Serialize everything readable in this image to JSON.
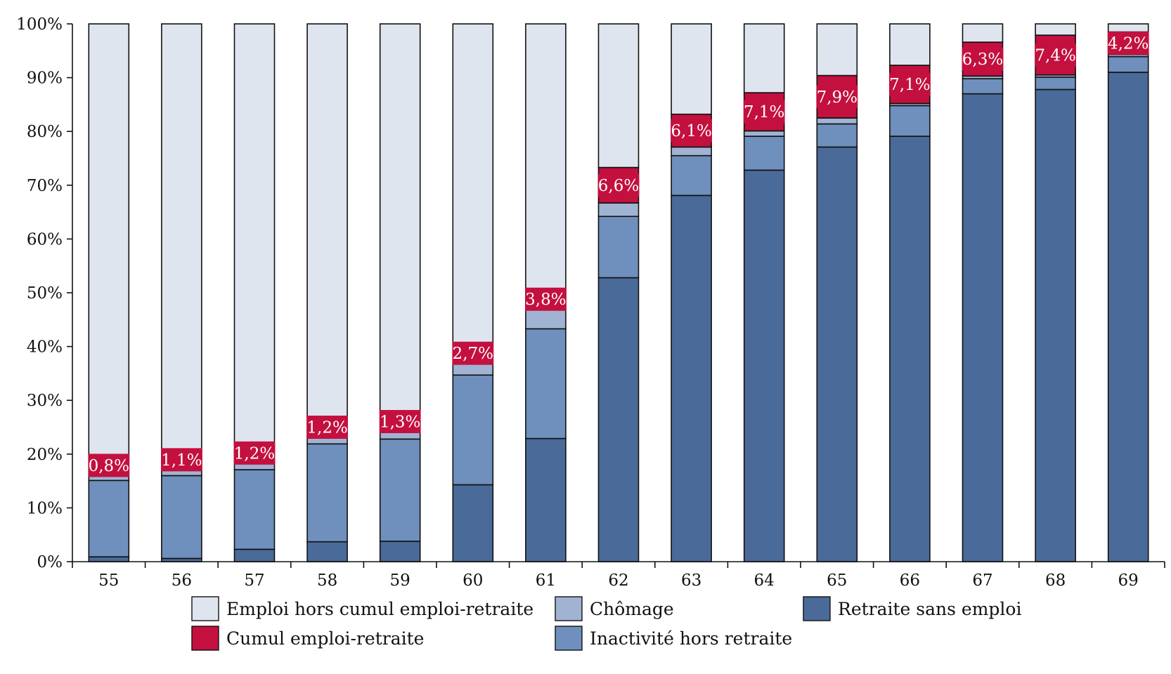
{
  "chart_data": {
    "type": "bar",
    "stacked": true,
    "categories": [
      "55",
      "56",
      "57",
      "58",
      "59",
      "60",
      "61",
      "62",
      "63",
      "64",
      "65",
      "66",
      "67",
      "68",
      "69"
    ],
    "ylim": [
      0,
      100
    ],
    "y_ticks": [
      0,
      10,
      20,
      30,
      40,
      50,
      60,
      70,
      80,
      90,
      100
    ],
    "y_tick_labels": [
      "0%",
      "10%",
      "20%",
      "30%",
      "40%",
      "50%",
      "60%",
      "70%",
      "80%",
      "90%",
      "100%"
    ],
    "grid": false,
    "legend_position": "bottom",
    "series": [
      {
        "key": "retraite",
        "name": "Retraite sans emploi",
        "color": "#4a6a99",
        "values": [
          0.9,
          0.6,
          2.3,
          3.7,
          3.8,
          14.3,
          22.9,
          52.8,
          68.1,
          72.8,
          77.1,
          79.1,
          87.0,
          87.8,
          91.0
        ]
      },
      {
        "key": "inactivite",
        "name": "Inactivité hors retraite",
        "color": "#6f8fbc",
        "values": [
          14.2,
          15.4,
          14.8,
          18.2,
          19.0,
          20.4,
          20.4,
          11.4,
          7.4,
          6.3,
          4.3,
          5.7,
          2.8,
          2.3,
          2.9
        ]
      },
      {
        "key": "chomage",
        "name": "Chômage",
        "color": "#a1b3d2",
        "values": [
          2.4,
          2.4,
          2.5,
          2.5,
          2.6,
          2.7,
          3.6,
          2.5,
          1.6,
          1.0,
          1.1,
          0.4,
          0.5,
          0.4,
          0.4
        ]
      },
      {
        "key": "cumul",
        "name": "Cumul emploi-retraite",
        "color": "#c3103f",
        "values": [
          0.8,
          1.1,
          1.2,
          1.2,
          1.3,
          2.7,
          3.8,
          6.6,
          6.1,
          7.1,
          7.9,
          7.1,
          6.3,
          7.4,
          4.2
        ],
        "labels": [
          "0,8%",
          "1,1%",
          "1,2%",
          "1,2%",
          "1,3%",
          "2,7%",
          "3,8%",
          "6,6%",
          "6,1%",
          "7,1%",
          "7,9%",
          "7,1%",
          "6,3%",
          "7,4%",
          "4,2%"
        ]
      },
      {
        "key": "emploi",
        "name": "Emploi hors cumul emploi-retraite",
        "color": "#dfe5ef",
        "values": [
          81.7,
          80.5,
          79.2,
          74.4,
          73.3,
          59.9,
          49.3,
          26.7,
          16.8,
          12.8,
          9.6,
          7.7,
          3.4,
          2.1,
          1.5
        ]
      }
    ],
    "legend_order": [
      "emploi",
      "chomage",
      "retraite",
      "cumul",
      "inactivite"
    ]
  }
}
